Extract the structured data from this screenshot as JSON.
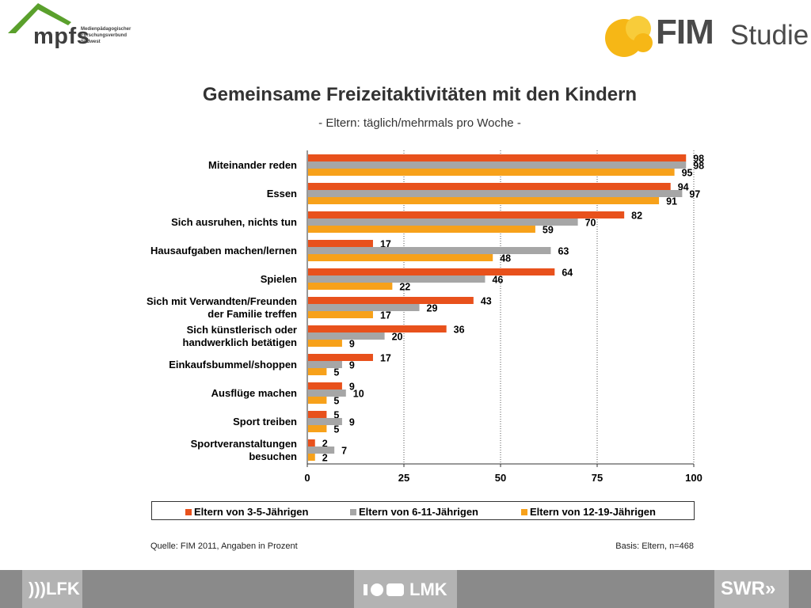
{
  "header": {
    "mpfs_logo": "mpfs",
    "mpfs_sub": [
      "Medienpädagogischer",
      "Forschungsverbund",
      "Südwest"
    ],
    "fim_logo": "FIM",
    "studie_logo": "Studie"
  },
  "chart_data": {
    "type": "bar",
    "orientation": "horizontal",
    "title": "Gemeinsame Freizeitaktivitäten mit den Kindern",
    "subtitle": "- Eltern: täglich/mehrmals pro Woche -",
    "categories": [
      [
        "Miteinander reden"
      ],
      [
        "Essen"
      ],
      [
        "Sich ausruhen, nichts tun"
      ],
      [
        "Hausaufgaben machen/lernen"
      ],
      [
        "Spielen"
      ],
      [
        "Sich mit Verwandten/Freunden",
        "der Familie treffen"
      ],
      [
        "Sich künstlerisch oder",
        "handwerklich betätigen"
      ],
      [
        "Einkaufsbummel/shoppen"
      ],
      [
        "Ausflüge machen"
      ],
      [
        "Sport treiben"
      ],
      [
        "Sportveranstaltungen",
        "besuchen"
      ]
    ],
    "series": [
      {
        "name": "Eltern von 3-5-Jährigen",
        "color": "#e8511c",
        "values": [
          98,
          94,
          82,
          17,
          64,
          43,
          36,
          17,
          9,
          5,
          2
        ]
      },
      {
        "name": "Eltern von 6-11-Jährigen",
        "color": "#a6a6a6",
        "values": [
          98,
          97,
          70,
          63,
          46,
          29,
          20,
          9,
          10,
          9,
          7
        ]
      },
      {
        "name": "Eltern von 12-19-Jährigen",
        "color": "#f7a11a",
        "values": [
          95,
          91,
          59,
          48,
          22,
          17,
          9,
          5,
          5,
          5,
          2
        ]
      }
    ],
    "xlim": [
      0,
      100
    ],
    "xticks": [
      0,
      25,
      50,
      75,
      100
    ],
    "grid": "dotted vertical",
    "legend_position": "bottom"
  },
  "footnote": {
    "source": "Quelle: FIM 2011,  Angaben in Prozent",
    "basis": "Basis: Eltern, n=468"
  },
  "footer": {
    "lfk": "LFK",
    "lmk": "LMK",
    "swr": "SWR"
  }
}
